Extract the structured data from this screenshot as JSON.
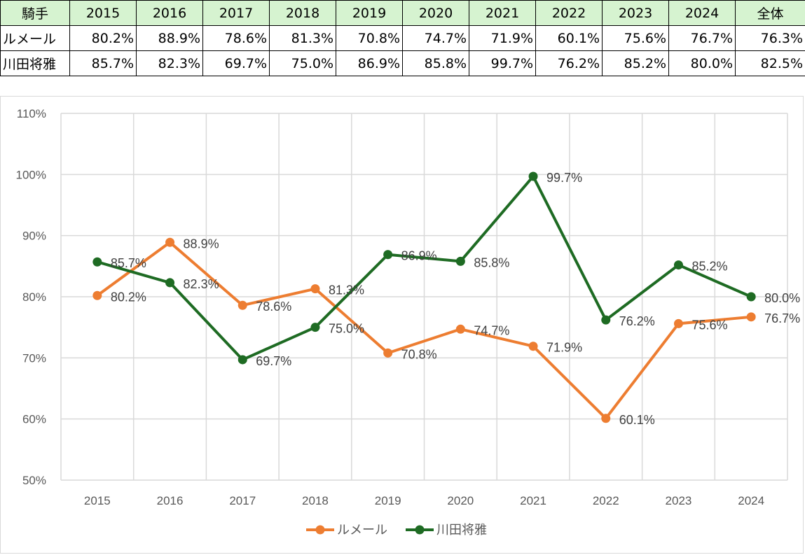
{
  "table": {
    "header_label": "騎手",
    "columns": [
      "2015",
      "2016",
      "2017",
      "2018",
      "2019",
      "2020",
      "2021",
      "2022",
      "2023",
      "2024",
      "全体"
    ],
    "rows": [
      {
        "name": "ルメール",
        "values": [
          "80.2%",
          "88.9%",
          "78.6%",
          "81.3%",
          "70.8%",
          "74.7%",
          "71.9%",
          "60.1%",
          "75.6%",
          "76.7%",
          "76.3%"
        ]
      },
      {
        "name": "川田将雅",
        "values": [
          "85.7%",
          "82.3%",
          "69.7%",
          "75.0%",
          "86.9%",
          "85.8%",
          "99.7%",
          "76.2%",
          "85.2%",
          "80.0%",
          "82.5%"
        ]
      }
    ]
  },
  "chart_data": {
    "type": "line",
    "title": "",
    "xlabel": "",
    "ylabel": "",
    "x": [
      "2015",
      "2016",
      "2017",
      "2018",
      "2019",
      "2020",
      "2021",
      "2022",
      "2023",
      "2024"
    ],
    "ylim": [
      50,
      110
    ],
    "y_ticks": [
      50,
      60,
      70,
      80,
      90,
      100,
      110
    ],
    "y_tick_labels": [
      "50%",
      "60%",
      "70%",
      "80%",
      "90%",
      "100%",
      "110%"
    ],
    "grid": true,
    "legend_position": "bottom-center",
    "series": [
      {
        "name": "ルメール",
        "color": "#ed7d31",
        "values": [
          80.2,
          88.9,
          78.6,
          81.3,
          70.8,
          74.7,
          71.9,
          60.1,
          75.6,
          76.7
        ],
        "labels": [
          "80.2%",
          "88.9%",
          "78.6%",
          "81.3%",
          "70.8%",
          "74.7%",
          "71.9%",
          "60.1%",
          "75.6%",
          "76.7%"
        ]
      },
      {
        "name": "川田将雅",
        "color": "#1e6b23",
        "values": [
          85.7,
          82.3,
          69.7,
          75.0,
          86.9,
          85.8,
          99.7,
          76.2,
          85.2,
          80.0
        ],
        "labels": [
          "85.7%",
          "82.3%",
          "69.7%",
          "75.0%",
          "86.9%",
          "85.8%",
          "99.7%",
          "76.2%",
          "85.2%",
          "80.0%"
        ]
      }
    ]
  }
}
